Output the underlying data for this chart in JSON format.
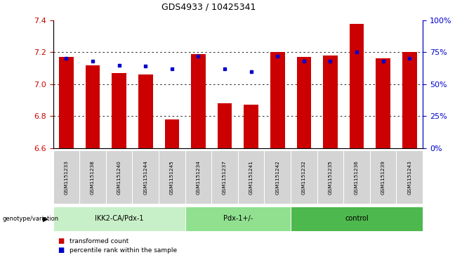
{
  "title": "GDS4933 / 10425341",
  "samples": [
    "GSM1151233",
    "GSM1151238",
    "GSM1151240",
    "GSM1151244",
    "GSM1151245",
    "GSM1151234",
    "GSM1151237",
    "GSM1151241",
    "GSM1151242",
    "GSM1151232",
    "GSM1151235",
    "GSM1151236",
    "GSM1151239",
    "GSM1151243"
  ],
  "bar_values": [
    7.17,
    7.12,
    7.07,
    7.06,
    6.78,
    7.19,
    6.88,
    6.87,
    7.2,
    7.17,
    7.18,
    7.38,
    7.16,
    7.2
  ],
  "percentile_values": [
    70,
    68,
    65,
    64,
    62,
    72,
    62,
    60,
    72,
    68,
    68,
    75,
    68,
    70
  ],
  "ylim_left": [
    6.6,
    7.4
  ],
  "ylim_right": [
    0,
    100
  ],
  "yticks_left": [
    6.6,
    6.8,
    7.0,
    7.2,
    7.4
  ],
  "yticks_right": [
    0,
    25,
    50,
    75,
    100
  ],
  "groups": [
    {
      "label": "IKK2-CA/Pdx-1",
      "start": 0,
      "end": 5,
      "color": "#c8f0c8"
    },
    {
      "label": "Pdx-1+/-",
      "start": 5,
      "end": 9,
      "color": "#90e090"
    },
    {
      "label": "control",
      "start": 9,
      "end": 14,
      "color": "#4db84d"
    }
  ],
  "bar_color": "#cc0000",
  "dot_color": "#0000cc",
  "bar_bottom": 6.6,
  "legend_items": [
    "transformed count",
    "percentile rank within the sample"
  ],
  "legend_colors": [
    "#cc0000",
    "#0000cc"
  ],
  "ylabel_right_color": "#0000cc",
  "ylabel_left_color": "#cc0000",
  "grid_yticks": [
    6.8,
    7.0,
    7.2
  ]
}
